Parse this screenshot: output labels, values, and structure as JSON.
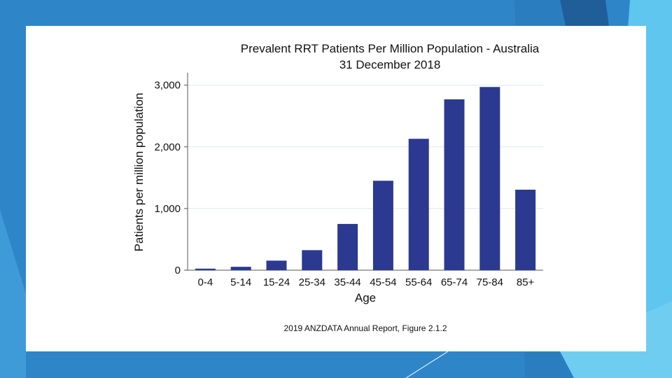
{
  "slide": {
    "title": "Prevalent RRT Patients Per Million Population - Australia",
    "subtitle": "31 December 2018",
    "source": "2019 ANZDATA Annual Report, Figure 2.1.2"
  },
  "colors": {
    "bar": "#2b3990",
    "background_blue": "#2e86c9",
    "accent_light_blue": "#5ec6ef",
    "accent_dark_blue": "#1f5e99",
    "gridline": "#dde9ee"
  },
  "chart_data": {
    "type": "bar",
    "title": "Prevalent RRT Patients Per Million Population - Australia",
    "subtitle": "31 December 2018",
    "xlabel": "Age",
    "ylabel": "Patients per million population",
    "categories": [
      "0-4",
      "5-14",
      "15-24",
      "25-34",
      "35-44",
      "45-54",
      "55-64",
      "65-74",
      "75-84",
      "85+"
    ],
    "values": [
      25,
      55,
      155,
      325,
      750,
      1450,
      2130,
      2770,
      2970,
      1305
    ],
    "ylim": [
      0,
      3200
    ],
    "yticks": [
      0,
      1000,
      2000,
      3000
    ],
    "ytick_labels": [
      "0",
      "1,000",
      "2,000",
      "3,000"
    ],
    "grid": true
  }
}
